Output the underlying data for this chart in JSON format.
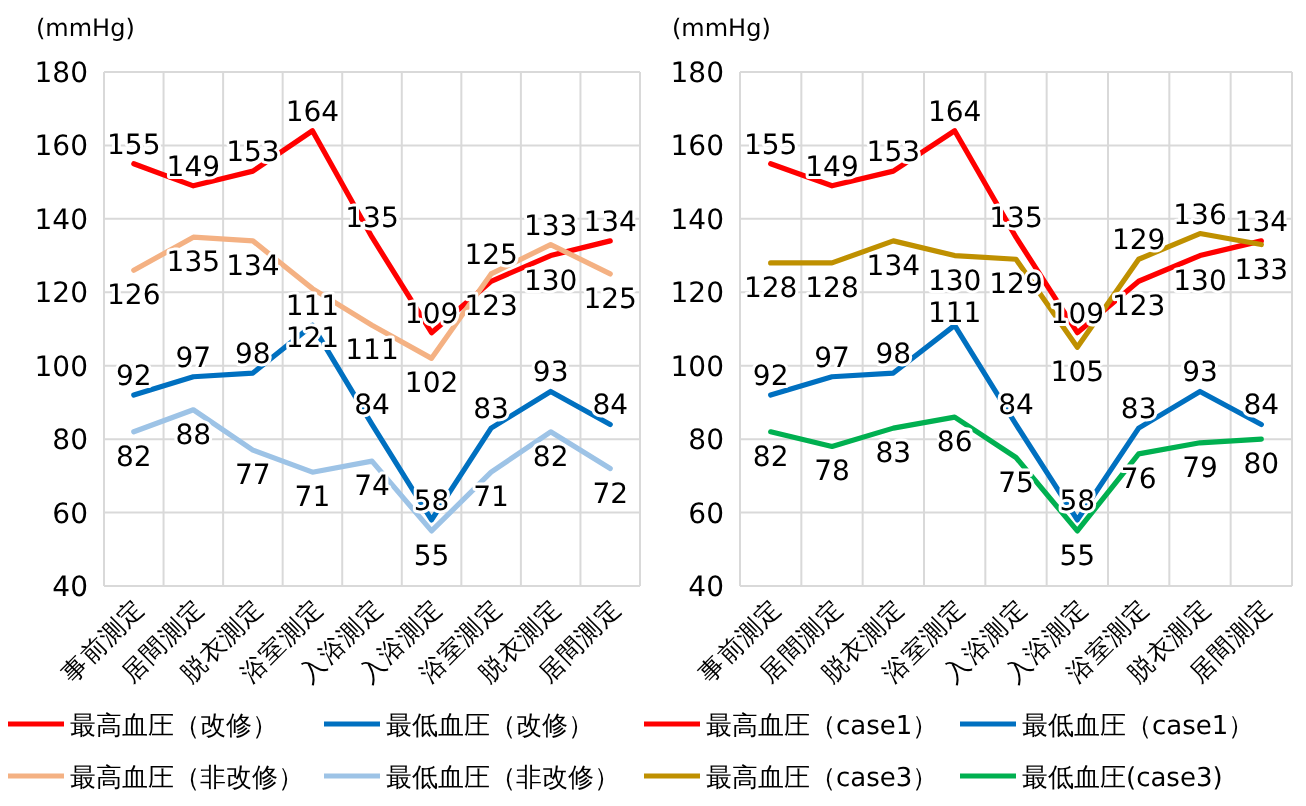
{
  "chart_data": [
    {
      "type": "line",
      "ylabel": "(mmHg)",
      "categories": [
        "事前測定",
        "居間測定",
        "脱衣測定",
        "浴室測定",
        "入浴測定",
        "入浴測定",
        "浴室測定",
        "脱衣測定",
        "居間測定"
      ],
      "ylim": [
        40,
        180
      ],
      "yticks": [
        40,
        60,
        80,
        100,
        120,
        140,
        160,
        180
      ],
      "grid": true,
      "legend": "bottom",
      "data_labels": true,
      "marker": "none",
      "series": [
        {
          "name": "最高血圧（改修）",
          "color": "#ff0000",
          "values": [
            155,
            149,
            153,
            164,
            135,
            109,
            123,
            130,
            134
          ]
        },
        {
          "name": "最低血圧（改修）",
          "color": "#0070c0",
          "values": [
            92,
            97,
            98,
            111,
            84,
            58,
            83,
            93,
            84
          ]
        },
        {
          "name": "最高血圧（非改修）",
          "color": "#f4b183",
          "values": [
            126,
            135,
            134,
            121,
            111,
            102,
            125,
            133,
            125
          ]
        },
        {
          "name": "最低血圧（非改修）",
          "color": "#9dc3e6",
          "values": [
            82,
            88,
            77,
            71,
            74,
            55,
            71,
            82,
            72
          ]
        }
      ]
    },
    {
      "type": "line",
      "ylabel": "(mmHg)",
      "categories": [
        "事前測定",
        "居間測定",
        "脱衣測定",
        "浴室測定",
        "入浴測定",
        "入浴測定",
        "浴室測定",
        "脱衣測定",
        "居間測定"
      ],
      "ylim": [
        40,
        180
      ],
      "yticks": [
        40,
        60,
        80,
        100,
        120,
        140,
        160,
        180
      ],
      "grid": true,
      "legend": "bottom",
      "data_labels": true,
      "marker": "none",
      "series": [
        {
          "name": "最高血圧（case1）",
          "color": "#ff0000",
          "values": [
            155,
            149,
            153,
            164,
            135,
            109,
            123,
            130,
            134
          ]
        },
        {
          "name": "最低血圧（case1）",
          "color": "#0070c0",
          "values": [
            92,
            97,
            98,
            111,
            84,
            58,
            83,
            93,
            84
          ]
        },
        {
          "name": "最高血圧（case3）",
          "color": "#bf9000",
          "values": [
            128,
            128,
            134,
            130,
            129,
            105,
            129,
            136,
            133
          ]
        },
        {
          "name": "最低血圧(case3)",
          "color": "#00b050",
          "values": [
            82,
            78,
            83,
            86,
            75,
            55,
            76,
            79,
            80
          ]
        }
      ]
    }
  ]
}
